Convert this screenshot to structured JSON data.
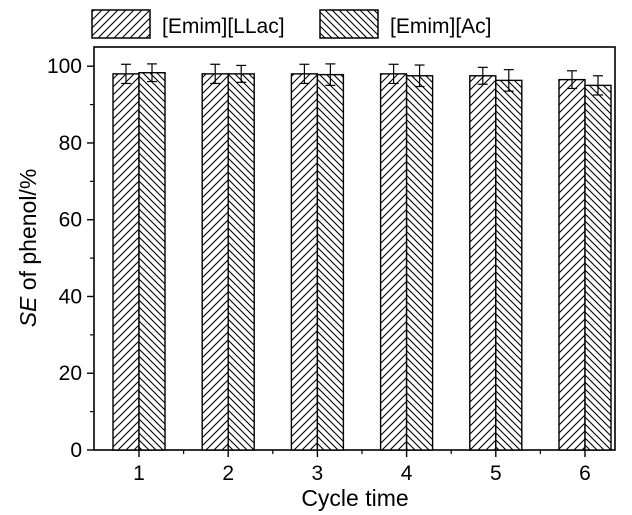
{
  "chart_data": {
    "type": "bar",
    "title": "",
    "xlabel": "Cycle time",
    "ylabel_italic": "SE",
    "ylabel_rest": " of phenol/%",
    "categories": [
      "1",
      "2",
      "3",
      "4",
      "5",
      "6"
    ],
    "ylim": [
      0,
      105
    ],
    "yticks": [
      0,
      20,
      40,
      60,
      80,
      100
    ],
    "grid": false,
    "legend_position": "top",
    "series": [
      {
        "name": "[Emim][LLac]",
        "hatch": "forward-diagonal",
        "values": [
          98.0,
          98.0,
          98.0,
          98.0,
          97.5,
          96.5
        ],
        "errors": [
          2.5,
          2.5,
          2.5,
          2.5,
          2.2,
          2.3
        ]
      },
      {
        "name": "[Emim][Ac]",
        "hatch": "back-diagonal",
        "values": [
          98.3,
          98.0,
          97.8,
          97.5,
          96.3,
          95.0
        ],
        "errors": [
          2.3,
          2.2,
          2.8,
          2.8,
          2.8,
          2.5
        ]
      }
    ]
  }
}
